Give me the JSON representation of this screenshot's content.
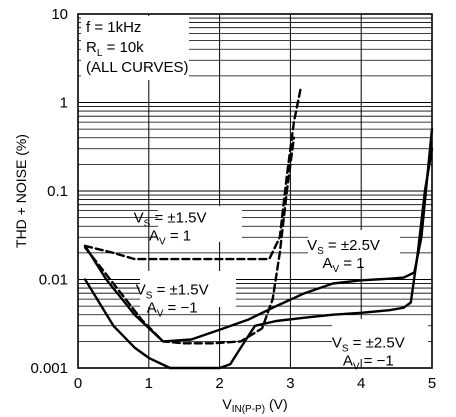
{
  "chart_data": {
    "type": "line",
    "title": "",
    "xlabel": "V",
    "xlabel_sub": "IN(P-P)",
    "xlabel_unit": " (V)",
    "ylabel": "THD + NOISE (%)",
    "xlim": [
      0,
      5
    ],
    "ylim": [
      0.001,
      10
    ],
    "y_scale": "log",
    "grid": true,
    "x_ticks": [
      0,
      1,
      2,
      3,
      4,
      5
    ],
    "x_tick_labels": [
      "0",
      "1",
      "2",
      "3",
      "4",
      "5"
    ],
    "y_ticks": [
      0.001,
      0.01,
      0.1,
      1,
      10
    ],
    "y_tick_labels": [
      "0.001",
      "0.01",
      "0.1",
      "1",
      "10"
    ],
    "conditions": [
      "f = 1kHz",
      "R_L = 10k",
      "(ALL CURVES)"
    ],
    "series": [
      {
        "dash": true,
        "label_lines": [
          "V_S = ±1.5V",
          "A_V = 1"
        ],
        "x": [
          0.1,
          0.5,
          0.8,
          1.2,
          1.6,
          2.0,
          2.4,
          2.7,
          2.85,
          2.95,
          3.05,
          3.15
        ],
        "y": [
          0.024,
          0.02,
          0.017,
          0.017,
          0.017,
          0.017,
          0.017,
          0.017,
          0.03,
          0.15,
          0.6,
          1.5
        ]
      },
      {
        "dash": true,
        "label_lines": [
          "V_S = ±1.5V",
          "A_V = −1"
        ],
        "x": [
          0.1,
          0.5,
          0.9,
          1.2,
          1.5,
          1.9,
          2.3,
          2.6,
          2.75,
          2.85,
          2.95,
          3.05
        ],
        "y": [
          0.023,
          0.009,
          0.0035,
          0.002,
          0.0019,
          0.0019,
          0.002,
          0.0028,
          0.006,
          0.02,
          0.1,
          0.4
        ]
      },
      {
        "dash": false,
        "label_lines": [
          "V_S = ±2.5V",
          "A_V = 1"
        ],
        "x": [
          0.1,
          0.4,
          0.8,
          1.2,
          1.6,
          2.0,
          2.4,
          2.8,
          3.2,
          3.6,
          4.0,
          4.4,
          4.6,
          4.75,
          4.85,
          4.95,
          5.0
        ],
        "y": [
          0.024,
          0.01,
          0.004,
          0.002,
          0.0021,
          0.0027,
          0.0035,
          0.005,
          0.007,
          0.009,
          0.0098,
          0.0102,
          0.0105,
          0.012,
          0.03,
          0.2,
          0.5
        ]
      },
      {
        "dash": false,
        "label_lines": [
          "V_S = ±2.5V",
          "A_V = −1"
        ],
        "x": [
          0.1,
          0.5,
          0.8,
          1.0,
          1.3,
          1.6,
          2.0,
          2.15,
          2.3,
          2.5,
          2.8,
          3.2,
          3.6,
          4.0,
          4.4,
          4.6,
          4.7,
          4.8,
          4.9,
          5.0
        ],
        "y": [
          0.01,
          0.003,
          0.0017,
          0.0013,
          0.001,
          0.001,
          0.001,
          0.0011,
          0.0017,
          0.003,
          0.0034,
          0.0037,
          0.004,
          0.0042,
          0.0045,
          0.0048,
          0.0055,
          0.02,
          0.1,
          0.3
        ]
      }
    ]
  }
}
